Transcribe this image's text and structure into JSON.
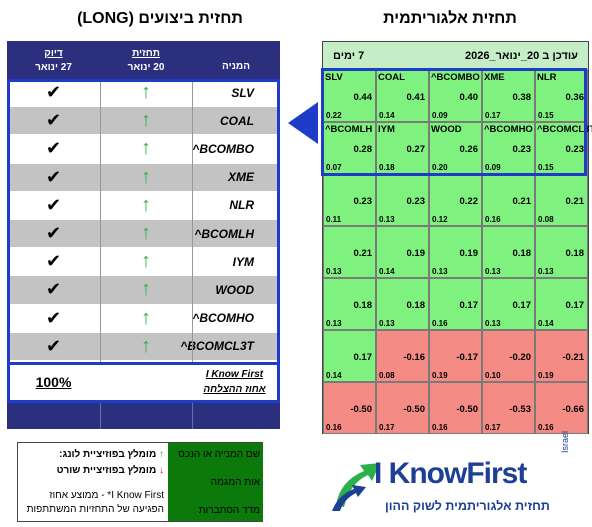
{
  "titles": {
    "left": "תחזית ביצועים (LONG)",
    "right": "תחזית אלגוריתמית"
  },
  "perf": {
    "headers": {
      "check_l1": "דיוק",
      "check_l2": "27 ינואר",
      "pred_l1": "תחזית",
      "pred_l2": "20 ינואר",
      "asset": "המניה"
    },
    "rows": [
      {
        "asset": "SLV",
        "arrow": "↑",
        "check": "✔"
      },
      {
        "asset": "COAL",
        "arrow": "↑",
        "check": "✔"
      },
      {
        "asset": "^BCOMBO",
        "arrow": "↑",
        "check": "✔"
      },
      {
        "asset": "XME",
        "arrow": "↑",
        "check": "✔"
      },
      {
        "asset": "NLR",
        "arrow": "↑",
        "check": "✔"
      },
      {
        "asset": "^BCOMLH",
        "arrow": "↑",
        "check": "✔"
      },
      {
        "asset": "IYM",
        "arrow": "↑",
        "check": "✔"
      },
      {
        "asset": "WOOD",
        "arrow": "↑",
        "check": "✔"
      },
      {
        "asset": "^BCOMHO",
        "arrow": "↑",
        "check": "✔"
      },
      {
        "asset": "^BCOMCL3T",
        "arrow": "↑",
        "check": "✔"
      }
    ],
    "summary": {
      "percent": "100%",
      "brand": "I Know First",
      "caption": "אחוז ההצלחה"
    }
  },
  "heat": {
    "header_updated": "עודכן ב 20_ינואר_2026",
    "header_horizon": "7 ימים",
    "rows": [
      [
        {
          "name": "SLV",
          "signal": "0.44",
          "pred": "0.22",
          "type": "pos"
        },
        {
          "name": "COAL",
          "signal": "0.41",
          "pred": "0.14",
          "type": "pos"
        },
        {
          "name": "^BCOMBO",
          "signal": "0.40",
          "pred": "0.09",
          "type": "pos"
        },
        {
          "name": "XME",
          "signal": "0.38",
          "pred": "0.17",
          "type": "pos"
        },
        {
          "name": "NLR",
          "signal": "0.36",
          "pred": "0.15",
          "type": "pos"
        }
      ],
      [
        {
          "name": "^BCOMLH",
          "signal": "0.28",
          "pred": "0.07",
          "type": "pos"
        },
        {
          "name": "IYM",
          "signal": "0.27",
          "pred": "0.18",
          "type": "pos"
        },
        {
          "name": "WOOD",
          "signal": "0.26",
          "pred": "0.20",
          "type": "pos"
        },
        {
          "name": "^BCOMHO",
          "signal": "0.23",
          "pred": "0.09",
          "type": "pos"
        },
        {
          "name": "^BCOMCL3T",
          "signal": "0.23",
          "pred": "0.15",
          "type": "pos"
        }
      ],
      [
        {
          "name": "",
          "signal": "0.23",
          "pred": "0.11",
          "type": "pos"
        },
        {
          "name": "",
          "signal": "0.23",
          "pred": "0.13",
          "type": "pos"
        },
        {
          "name": "",
          "signal": "0.22",
          "pred": "0.12",
          "type": "pos"
        },
        {
          "name": "",
          "signal": "0.21",
          "pred": "0.16",
          "type": "pos"
        },
        {
          "name": "",
          "signal": "0.21",
          "pred": "0.08",
          "type": "pos"
        }
      ],
      [
        {
          "name": "",
          "signal": "0.21",
          "pred": "0.13",
          "type": "pos"
        },
        {
          "name": "",
          "signal": "0.19",
          "pred": "0.14",
          "type": "pos"
        },
        {
          "name": "",
          "signal": "0.19",
          "pred": "0.13",
          "type": "pos"
        },
        {
          "name": "",
          "signal": "0.18",
          "pred": "0.13",
          "type": "pos"
        },
        {
          "name": "",
          "signal": "0.18",
          "pred": "0.13",
          "type": "pos"
        }
      ],
      [
        {
          "name": "",
          "signal": "0.18",
          "pred": "0.13",
          "type": "pos"
        },
        {
          "name": "",
          "signal": "0.18",
          "pred": "0.13",
          "type": "pos"
        },
        {
          "name": "",
          "signal": "0.17",
          "pred": "0.16",
          "type": "pos"
        },
        {
          "name": "",
          "signal": "0.17",
          "pred": "0.13",
          "type": "pos"
        },
        {
          "name": "",
          "signal": "0.17",
          "pred": "0.14",
          "type": "pos"
        }
      ],
      [
        {
          "name": "",
          "signal": "0.17",
          "pred": "0.14",
          "type": "pos"
        },
        {
          "name": "",
          "signal": "-0.16",
          "pred": "0.08",
          "type": "neg"
        },
        {
          "name": "",
          "signal": "-0.17",
          "pred": "0.19",
          "type": "neg"
        },
        {
          "name": "",
          "signal": "-0.20",
          "pred": "0.10",
          "type": "neg"
        },
        {
          "name": "",
          "signal": "-0.21",
          "pred": "0.19",
          "type": "neg"
        }
      ],
      [
        {
          "name": "",
          "signal": "-0.50",
          "pred": "0.16",
          "type": "neg"
        },
        {
          "name": "",
          "signal": "-0.50",
          "pred": "0.17",
          "type": "neg"
        },
        {
          "name": "",
          "signal": "-0.50",
          "pred": "0.16",
          "type": "neg"
        },
        {
          "name": "",
          "signal": "-0.53",
          "pred": "0.17",
          "type": "neg"
        },
        {
          "name": "",
          "signal": "-0.66",
          "pred": "0.16",
          "type": "neg"
        }
      ]
    ]
  },
  "legend": {
    "right_1": "שם המנייה או הנכס",
    "right_2": "אות המגמה",
    "right_3": "מדד הסתברות",
    "long_arrow": "↑",
    "long_text": "מומלץ בפוזיציית לונג:",
    "short_arrow": "↓",
    "short_text": "מומלץ בפוזיציית שורט",
    "note_1": "I Know First* - ממוצע אחוז",
    "note_2": "הפגיעה של התחזיות המשתתפות"
  },
  "logo": {
    "brand_a": "I Know",
    "brand_b": "First",
    "country": "Israel",
    "tagline": "תחזית אלגוריתמית לשוק ההון",
    "colors": {
      "blue": "#1d3f95",
      "green": "#2bb04a"
    }
  },
  "colors": {
    "header_blue": "#2b2f7e",
    "highlight_blue": "#1f3cc9",
    "positive": "#7ff17f",
    "negative": "#f48b84",
    "arrow_green": "#2bb04a"
  }
}
